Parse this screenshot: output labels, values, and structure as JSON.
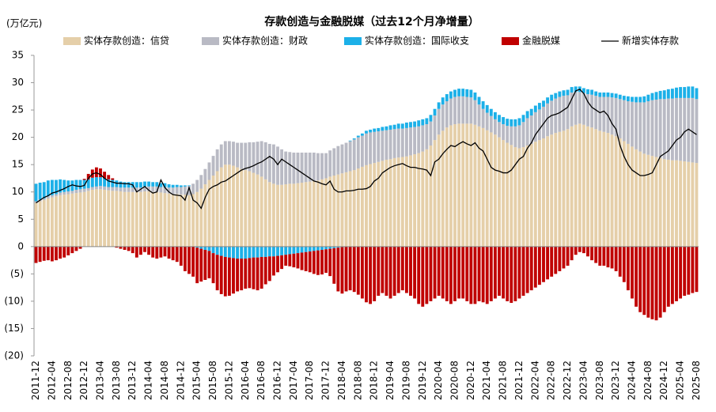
{
  "chart_data": {
    "type": "bar",
    "stacked": true,
    "title": "存款创造与金融脱媒（过去12个月净增量）",
    "unit_label": "(万亿元)",
    "categories": [
      "2011-12",
      null,
      null,
      null,
      "2012-04",
      null,
      null,
      null,
      "2012-08",
      null,
      null,
      null,
      "2012-12",
      null,
      null,
      null,
      "2013-04",
      null,
      null,
      null,
      "2013-08",
      null,
      null,
      null,
      "2013-12",
      null,
      null,
      null,
      "2014-04",
      null,
      null,
      null,
      "2014-08",
      null,
      null,
      null,
      "2014-12",
      null,
      null,
      null,
      "2015-04",
      null,
      null,
      null,
      "2015-08",
      null,
      null,
      null,
      "2015-12",
      null,
      null,
      null,
      "2016-04",
      null,
      null,
      null,
      "2016-08",
      null,
      null,
      null,
      "2016-12",
      null,
      null,
      null,
      "2017-04",
      null,
      null,
      null,
      "2017-08",
      null,
      null,
      null,
      "2017-12",
      null,
      null,
      null,
      "2018-04",
      null,
      null,
      null,
      "2018-08",
      null,
      null,
      null,
      "2018-12",
      null,
      null,
      null,
      "2019-04",
      null,
      null,
      null,
      "2019-08",
      null,
      null,
      null,
      "2019-12",
      null,
      null,
      null,
      "2020-04",
      null,
      null,
      null,
      "2020-08",
      null,
      null,
      null,
      "2020-12",
      null,
      null,
      null,
      "2021-04",
      null,
      null,
      null,
      "2021-08",
      null,
      null,
      null,
      "2021-12",
      null,
      null,
      null,
      "2022-04",
      null,
      null,
      null,
      "2022-08",
      null,
      null,
      null,
      "2022-12",
      null,
      null,
      null,
      "2023-04",
      null,
      null,
      null,
      "2023-08",
      null,
      null,
      null,
      "2023-12",
      null,
      null,
      null,
      "2024-04",
      null,
      null,
      null,
      "2024-08",
      null,
      null,
      null,
      "2024-12",
      null,
      null,
      null,
      "2025-04",
      null,
      null,
      null,
      "2025-08"
    ],
    "series": [
      {
        "name": "实体存款创造：信贷",
        "color": "#e5cfa9",
        "values": [
          8.0,
          8.3,
          8.5,
          8.8,
          9.0,
          9.2,
          9.4,
          9.5,
          9.6,
          9.7,
          9.8,
          9.9,
          10.0,
          10.2,
          10.4,
          10.5,
          10.5,
          10.4,
          10.3,
          10.2,
          10.2,
          10.1,
          10.0,
          10.0,
          10.0,
          10.0,
          10.0,
          10.1,
          10.1,
          10.0,
          10.0,
          9.9,
          9.8,
          9.7,
          9.6,
          9.6,
          9.5,
          9.5,
          9.4,
          9.6,
          10.0,
          10.6,
          11.4,
          12.2,
          13.0,
          13.8,
          14.5,
          15.0,
          15.0,
          14.8,
          14.5,
          14.2,
          14.0,
          13.8,
          13.5,
          13.2,
          12.8,
          12.3,
          11.8,
          11.5,
          11.3,
          11.3,
          11.4,
          11.5,
          11.5,
          11.6,
          11.7,
          11.8,
          11.9,
          12.0,
          12.1,
          12.3,
          12.5,
          12.8,
          13.0,
          13.2,
          13.4,
          13.6,
          13.8,
          14.0,
          14.3,
          14.6,
          14.9,
          15.1,
          15.3,
          15.5,
          15.7,
          15.9,
          16.0,
          16.2,
          16.3,
          16.4,
          16.5,
          16.7,
          16.9,
          17.1,
          17.4,
          17.8,
          18.5,
          19.5,
          20.5,
          21.2,
          21.8,
          22.2,
          22.4,
          22.5,
          22.5,
          22.5,
          22.5,
          22.3,
          22.0,
          21.7,
          21.3,
          20.9,
          20.5,
          20.0,
          19.5,
          19.0,
          18.6,
          18.2,
          18.0,
          18.2,
          18.5,
          18.8,
          19.2,
          19.5,
          19.8,
          20.2,
          20.5,
          20.8,
          21.0,
          21.2,
          21.5,
          22.0,
          22.3,
          22.5,
          22.3,
          22.0,
          21.8,
          21.5,
          21.2,
          21.0,
          20.8,
          20.5,
          20.2,
          19.8,
          19.3,
          18.8,
          18.3,
          17.8,
          17.4,
          17.0,
          16.8,
          16.6,
          16.4,
          16.2,
          16.0,
          15.9,
          15.8,
          15.8,
          15.7,
          15.6,
          15.5,
          15.4,
          15.3
        ]
      },
      {
        "name": "实体存款创造：财政",
        "color": "#b9bac4",
        "values": [
          0.3,
          0.3,
          0.3,
          0.4,
          0.4,
          0.4,
          0.5,
          0.5,
          0.5,
          0.5,
          0.6,
          0.6,
          0.6,
          0.5,
          0.5,
          0.5,
          0.6,
          0.6,
          0.6,
          0.7,
          0.7,
          0.7,
          0.8,
          0.8,
          0.8,
          0.8,
          0.8,
          0.9,
          0.9,
          1.0,
          1.0,
          1.0,
          1.1,
          1.1,
          1.2,
          1.3,
          1.4,
          1.5,
          1.7,
          1.9,
          2.2,
          2.5,
          2.8,
          3.2,
          3.6,
          4.0,
          4.2,
          4.3,
          4.3,
          4.4,
          4.5,
          4.8,
          5.0,
          5.3,
          5.6,
          6.0,
          6.5,
          6.8,
          7.0,
          7.2,
          7.0,
          6.5,
          6.0,
          5.8,
          5.7,
          5.6,
          5.5,
          5.4,
          5.3,
          5.2,
          5.0,
          4.8,
          4.6,
          4.8,
          5.0,
          5.2,
          5.3,
          5.4,
          5.5,
          5.6,
          5.7,
          5.7,
          5.8,
          5.8,
          5.7,
          5.6,
          5.5,
          5.4,
          5.4,
          5.3,
          5.3,
          5.2,
          5.2,
          5.1,
          5.0,
          4.9,
          4.8,
          4.6,
          4.4,
          4.5,
          4.7,
          4.8,
          4.8,
          4.9,
          5.0,
          5.0,
          5.0,
          4.9,
          4.8,
          4.5,
          4.0,
          3.5,
          3.2,
          3.0,
          2.8,
          2.8,
          2.9,
          3.1,
          3.4,
          3.8,
          4.2,
          4.6,
          5.0,
          5.2,
          5.4,
          5.6,
          5.8,
          6.0,
          6.2,
          6.3,
          6.4,
          6.4,
          6.2,
          6.2,
          6.0,
          5.8,
          5.8,
          5.9,
          6.0,
          6.1,
          6.2,
          6.4,
          6.6,
          6.8,
          7.0,
          7.2,
          7.5,
          7.8,
          8.2,
          8.6,
          9.0,
          9.4,
          9.8,
          10.2,
          10.5,
          10.8,
          11.0,
          11.2,
          11.3,
          11.4,
          11.5,
          11.6,
          11.7,
          11.8,
          11.7
        ]
      },
      {
        "name": "实体存款创造：国际收支",
        "color": "#1cb0e8",
        "values": [
          3.2,
          3.1,
          3.0,
          2.9,
          2.8,
          2.6,
          2.4,
          2.2,
          2.0,
          1.9,
          1.8,
          1.7,
          1.6,
          1.6,
          1.7,
          1.7,
          1.6,
          1.5,
          1.4,
          1.3,
          1.2,
          1.1,
          1.0,
          1.0,
          1.0,
          1.0,
          1.0,
          0.9,
          0.9,
          0.8,
          0.8,
          0.7,
          0.7,
          0.6,
          0.5,
          0.4,
          0.3,
          0.2,
          0.1,
          0,
          -0.2,
          -0.4,
          -0.6,
          -0.8,
          -1.2,
          -1.5,
          -1.7,
          -1.9,
          -2.0,
          -2.1,
          -2.2,
          -2.2,
          -2.2,
          -2.1,
          -2.0,
          -2.0,
          -1.9,
          -1.9,
          -1.8,
          -1.8,
          -1.7,
          -1.6,
          -1.5,
          -1.4,
          -1.3,
          -1.2,
          -1.1,
          -1.0,
          -0.9,
          -0.8,
          -0.7,
          -0.6,
          -0.5,
          -0.4,
          -0.3,
          -0.2,
          -0.1,
          0,
          0.1,
          0.2,
          0.3,
          0.4,
          0.5,
          0.5,
          0.6,
          0.6,
          0.7,
          0.7,
          0.8,
          0.8,
          0.9,
          0.9,
          1.0,
          1.0,
          1.0,
          1.1,
          1.1,
          1.1,
          1.2,
          1.2,
          1.2,
          1.3,
          1.3,
          1.3,
          1.3,
          1.4,
          1.4,
          1.4,
          1.4,
          1.4,
          1.4,
          1.4,
          1.4,
          1.3,
          1.3,
          1.3,
          1.3,
          1.3,
          1.3,
          1.3,
          1.3,
          1.3,
          1.3,
          1.2,
          1.2,
          1.2,
          1.1,
          1.1,
          1.1,
          1.0,
          1.0,
          1.0,
          1.0,
          1.0,
          1.0,
          1.0,
          0.9,
          0.9,
          0.9,
          0.8,
          0.8,
          0.8,
          0.8,
          0.8,
          0.8,
          0.8,
          0.8,
          0.9,
          0.9,
          1.0,
          1.0,
          1.1,
          1.2,
          1.3,
          1.4,
          1.5,
          1.6,
          1.7,
          1.8,
          1.9,
          2.0,
          2.0,
          2.1,
          2.1,
          2.0
        ]
      },
      {
        "name": "金融脱媒",
        "color": "#c00000",
        "values": [
          -3.0,
          -2.8,
          -2.6,
          -2.5,
          -2.7,
          -2.5,
          -2.2,
          -2.0,
          -1.6,
          -1.2,
          -0.8,
          -0.4,
          0.2,
          1.0,
          1.5,
          1.8,
          1.6,
          1.2,
          0.8,
          0.3,
          -0.2,
          -0.4,
          -0.6,
          -0.8,
          -1.2,
          -2.0,
          -1.5,
          -1.0,
          -1.5,
          -2.0,
          -2.2,
          -2.0,
          -1.8,
          -2.2,
          -2.5,
          -2.8,
          -3.5,
          -4.5,
          -5.0,
          -5.5,
          -6.5,
          -6.0,
          -5.5,
          -5.0,
          -5.5,
          -6.5,
          -7.0,
          -7.2,
          -7.0,
          -6.5,
          -6.0,
          -5.8,
          -5.5,
          -5.5,
          -5.8,
          -6.0,
          -5.8,
          -5.0,
          -4.5,
          -3.5,
          -3.0,
          -2.5,
          -2.0,
          -2.2,
          -2.5,
          -2.8,
          -3.2,
          -3.5,
          -3.8,
          -4.2,
          -4.5,
          -4.5,
          -4.3,
          -5.0,
          -6.5,
          -8.0,
          -8.5,
          -8.2,
          -8.0,
          -8.3,
          -8.8,
          -9.5,
          -10.2,
          -10.5,
          -10.0,
          -9.0,
          -8.5,
          -9.0,
          -9.5,
          -9.0,
          -8.5,
          -8.0,
          -8.5,
          -9.0,
          -9.5,
          -10.5,
          -11.0,
          -10.5,
          -10.0,
          -9.5,
          -9.0,
          -9.5,
          -10.0,
          -10.5,
          -10.0,
          -9.5,
          -9.5,
          -10.0,
          -10.5,
          -10.5,
          -10.0,
          -10.2,
          -10.5,
          -10.0,
          -9.5,
          -9.0,
          -9.5,
          -10.0,
          -10.3,
          -10.0,
          -9.5,
          -9.0,
          -8.5,
          -8.0,
          -7.5,
          -7.0,
          -6.5,
          -6.0,
          -5.5,
          -5.0,
          -4.5,
          -4.0,
          -3.5,
          -2.5,
          -1.5,
          -1.0,
          -1.2,
          -1.8,
          -2.5,
          -3.0,
          -3.5,
          -3.5,
          -3.8,
          -4.0,
          -4.5,
          -5.5,
          -6.5,
          -8.0,
          -9.5,
          -11.0,
          -12.0,
          -12.5,
          -13.0,
          -13.3,
          -13.5,
          -13.0,
          -12.0,
          -11.0,
          -10.5,
          -10.0,
          -9.5,
          -9.0,
          -8.8,
          -8.5,
          -8.3
        ]
      },
      {
        "name": "新增实体存款",
        "color": "#000000",
        "type": "line",
        "values": [
          8.0,
          8.5,
          9.0,
          9.3,
          9.8,
          10.0,
          10.3,
          10.6,
          11.0,
          11.3,
          11.1,
          11.0,
          11.2,
          12.5,
          13.3,
          13.5,
          13.2,
          12.5,
          12.0,
          11.8,
          11.6,
          11.6,
          11.5,
          11.5,
          11.3,
          10.0,
          10.5,
          11.0,
          10.3,
          9.8,
          10.0,
          12.2,
          10.8,
          10.0,
          9.5,
          9.4,
          9.3,
          8.5,
          10.8,
          8.5,
          8.0,
          7.0,
          9.0,
          10.5,
          11.0,
          11.3,
          11.8,
          12.0,
          12.5,
          13.0,
          13.5,
          14.0,
          14.3,
          14.5,
          14.8,
          15.2,
          15.5,
          16.0,
          16.5,
          16.0,
          15.0,
          16.0,
          15.5,
          15.0,
          14.5,
          14.0,
          13.5,
          13.0,
          12.5,
          12.0,
          11.8,
          11.5,
          11.3,
          12.0,
          10.5,
          10.0,
          10.0,
          10.2,
          10.2,
          10.3,
          10.5,
          10.5,
          10.6,
          11.0,
          12.0,
          12.5,
          13.5,
          14.0,
          14.5,
          14.8,
          15.0,
          15.2,
          14.8,
          14.5,
          14.5,
          14.3,
          14.2,
          14.0,
          13.0,
          15.5,
          16.0,
          17.0,
          17.8,
          18.5,
          18.3,
          18.8,
          19.2,
          18.8,
          18.5,
          19.0,
          18.0,
          17.5,
          16.0,
          14.5,
          14.0,
          13.8,
          13.5,
          13.5,
          14.0,
          15.0,
          16.0,
          16.5,
          18.0,
          19.0,
          20.5,
          21.5,
          22.5,
          23.5,
          24.0,
          24.2,
          24.5,
          25.0,
          25.5,
          27.0,
          28.5,
          28.8,
          28.0,
          26.5,
          25.5,
          25.0,
          24.5,
          24.8,
          24.0,
          22.5,
          21.5,
          18.5,
          16.5,
          15.0,
          14.0,
          13.5,
          13.0,
          13.0,
          13.2,
          13.5,
          15.0,
          16.5,
          17.0,
          17.5,
          18.5,
          19.5,
          20.0,
          21.0,
          21.5,
          21.0,
          20.5
        ]
      }
    ],
    "ylim": [
      -20,
      35
    ],
    "yticks": [
      35,
      30,
      25,
      20,
      15,
      10,
      5,
      0,
      {
        "value": -5,
        "label": "(5)"
      },
      {
        "value": -10,
        "label": "(10)"
      },
      {
        "value": -15,
        "label": "(15)"
      },
      {
        "value": -20,
        "label": "(20)"
      }
    ],
    "grid": false,
    "legend": "top"
  }
}
